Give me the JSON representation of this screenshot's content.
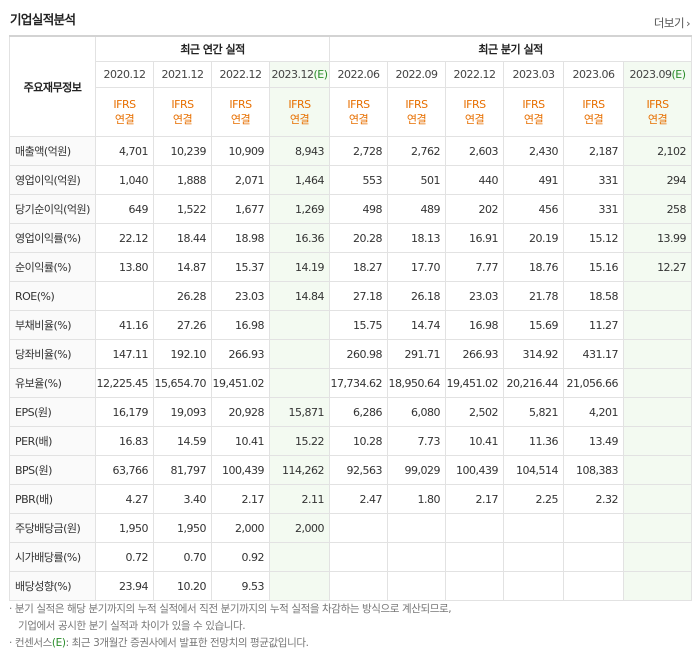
{
  "title": "기업실적분석",
  "more_label": "더보기",
  "header": {
    "row_head": "주요재무정보",
    "annual_group": "최근 연간 실적",
    "quarter_group": "최근 분기 실적",
    "annual_periods": [
      "2020.12",
      "2021.12",
      "2022.12"
    ],
    "annual_est": {
      "base": "2023.12",
      "mark": "(E)"
    },
    "quarter_periods": [
      "2022.06",
      "2022.09",
      "2022.12",
      "2023.03",
      "2023.06"
    ],
    "quarter_est": {
      "base": "2023.09",
      "mark": "(E)"
    },
    "ifrs_line1": "IFRS",
    "ifrs_line2": "연결"
  },
  "rows": [
    {
      "label": "매출액(억원)",
      "values": [
        "4,701",
        "10,239",
        "10,909",
        "8,943",
        "2,728",
        "2,762",
        "2,603",
        "2,430",
        "2,187",
        "2,102"
      ]
    },
    {
      "label": "영업이익(억원)",
      "values": [
        "1,040",
        "1,888",
        "2,071",
        "1,464",
        "553",
        "501",
        "440",
        "491",
        "331",
        "294"
      ]
    },
    {
      "label": "당기순이익(억원)",
      "values": [
        "649",
        "1,522",
        "1,677",
        "1,269",
        "498",
        "489",
        "202",
        "456",
        "331",
        "258"
      ]
    },
    {
      "label": "영업이익률(%)",
      "values": [
        "22.12",
        "18.44",
        "18.98",
        "16.36",
        "20.28",
        "18.13",
        "16.91",
        "20.19",
        "15.12",
        "13.99"
      ]
    },
    {
      "label": "순이익률(%)",
      "values": [
        "13.80",
        "14.87",
        "15.37",
        "14.19",
        "18.27",
        "17.70",
        "7.77",
        "18.76",
        "15.16",
        "12.27"
      ]
    },
    {
      "label": "ROE(%)",
      "values": [
        "",
        "26.28",
        "23.03",
        "14.84",
        "27.18",
        "26.18",
        "23.03",
        "21.78",
        "18.58",
        ""
      ]
    },
    {
      "label": "부채비율(%)",
      "values": [
        "41.16",
        "27.26",
        "16.98",
        "",
        "15.75",
        "14.74",
        "16.98",
        "15.69",
        "11.27",
        ""
      ]
    },
    {
      "label": "당좌비율(%)",
      "values": [
        "147.11",
        "192.10",
        "266.93",
        "",
        "260.98",
        "291.71",
        "266.93",
        "314.92",
        "431.17",
        ""
      ]
    },
    {
      "label": "유보율(%)",
      "values": [
        "12,225.45",
        "15,654.70",
        "19,451.02",
        "",
        "17,734.62",
        "18,950.64",
        "19,451.02",
        "20,216.44",
        "21,056.66",
        ""
      ]
    },
    {
      "label": "EPS(원)",
      "values": [
        "16,179",
        "19,093",
        "20,928",
        "15,871",
        "6,286",
        "6,080",
        "2,502",
        "5,821",
        "4,201",
        ""
      ]
    },
    {
      "label": "PER(배)",
      "values": [
        "16.83",
        "14.59",
        "10.41",
        "15.22",
        "10.28",
        "7.73",
        "10.41",
        "11.36",
        "13.49",
        ""
      ]
    },
    {
      "label": "BPS(원)",
      "values": [
        "63,766",
        "81,797",
        "100,439",
        "114,262",
        "92,563",
        "99,029",
        "100,439",
        "104,514",
        "108,383",
        ""
      ]
    },
    {
      "label": "PBR(배)",
      "values": [
        "4.27",
        "3.40",
        "2.17",
        "2.11",
        "2.47",
        "1.80",
        "2.17",
        "2.25",
        "2.32",
        ""
      ]
    },
    {
      "label": "주당배당금(원)",
      "values": [
        "1,950",
        "1,950",
        "2,000",
        "2,000",
        "",
        "",
        "",
        "",
        "",
        ""
      ]
    },
    {
      "label": "시가배당률(%)",
      "values": [
        "0.72",
        "0.70",
        "0.92",
        "",
        "",
        "",
        "",
        "",
        "",
        ""
      ]
    },
    {
      "label": "배당성향(%)",
      "values": [
        "23.94",
        "10.20",
        "9.53",
        "",
        "",
        "",
        "",
        "",
        "",
        ""
      ]
    }
  ],
  "notes": {
    "note1": "· 분기 실적은 해당 분기까지의 누적 실적에서 직전 분기까지의 누적 실적을 차감하는 방식으로 계산되므로,",
    "note1b": "기업에서 공시한 분기 실적과 차이가 있을 수 있습니다.",
    "note2_prefix": "· 컨센서스",
    "note2_mark": "(E)",
    "note2_suffix": ": 최근 3개월간 증권사에서 발표한 전망치의 평균값입니다."
  }
}
